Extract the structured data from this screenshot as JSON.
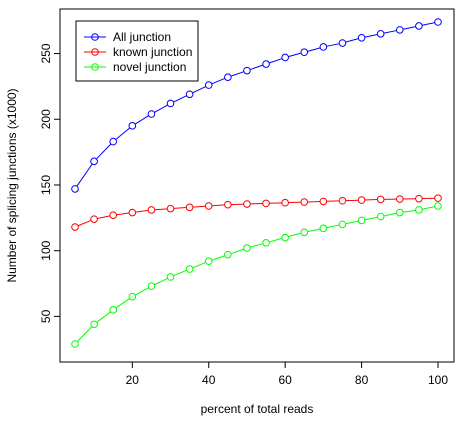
{
  "chart_data": {
    "type": "line",
    "title": "",
    "xlabel": "percent of total reads",
    "ylabel": "Number of splicing junctions (x1000)",
    "x": [
      5,
      10,
      15,
      20,
      25,
      30,
      35,
      40,
      45,
      50,
      55,
      60,
      65,
      70,
      75,
      80,
      85,
      90,
      95,
      100
    ],
    "xlim": [
      5,
      100
    ],
    "ylim": [
      29,
      274
    ],
    "xticks": [
      20,
      40,
      60,
      80,
      100
    ],
    "yticks": [
      50,
      100,
      150,
      200,
      250
    ],
    "grid": false,
    "legend_position": "top-left",
    "series": [
      {
        "name": "All junction",
        "color": "#0000FF",
        "values": [
          147,
          168,
          183,
          195,
          204,
          212,
          219,
          226,
          232,
          237,
          242,
          247,
          251,
          255,
          258,
          262,
          265,
          268,
          271,
          274
        ]
      },
      {
        "name": "known junction",
        "color": "#FF0000",
        "values": [
          118,
          124,
          127,
          129,
          131,
          132,
          133,
          134,
          135,
          135.5,
          136,
          136.5,
          137,
          137.5,
          138,
          138.5,
          139,
          139.3,
          139.6,
          140
        ]
      },
      {
        "name": "novel junction",
        "color": "#00FF00",
        "values": [
          29,
          44,
          55,
          65,
          73,
          80,
          86,
          92,
          97,
          102,
          106,
          110,
          114,
          117,
          120,
          123,
          126,
          129,
          131,
          134
        ]
      }
    ]
  }
}
